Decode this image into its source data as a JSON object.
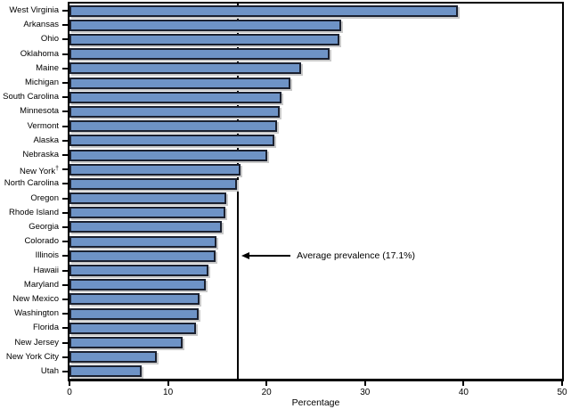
{
  "chart_data": {
    "type": "bar",
    "orientation": "horizontal",
    "title": "",
    "xlabel": "Percentage",
    "xlim": [
      0,
      50
    ],
    "x_ticks": [
      0,
      10,
      20,
      30,
      40,
      50
    ],
    "grid": false,
    "legend": "none",
    "categories": [
      "West Virginia",
      "Arkansas",
      "Ohio",
      "Oklahoma",
      "Maine",
      "Michigan",
      "South Carolina",
      "Minnesota",
      "Vermont",
      "Alaska",
      "Nebraska",
      "New York†",
      "North Carolina",
      "Oregon",
      "Rhode Island",
      "Georgia",
      "Colorado",
      "Illinois",
      "Hawaii",
      "Maryland",
      "New Mexico",
      "Washington",
      "Florida",
      "New Jersey",
      "New York City",
      "Utah"
    ],
    "values": [
      39.4,
      27.6,
      27.4,
      26.4,
      23.5,
      22.4,
      21.5,
      21.3,
      21.1,
      20.8,
      20.1,
      17.4,
      17.0,
      15.9,
      15.8,
      15.5,
      14.9,
      14.8,
      14.1,
      13.8,
      13.2,
      13.1,
      12.8,
      11.5,
      8.9,
      7.3
    ],
    "reference_line": {
      "value": 17.1,
      "label": "Average prevalence (17.1%)",
      "label_row": "Illinois"
    },
    "colors": {
      "bar_fill": "#6E93C6",
      "bar_border": "#1b2130",
      "axis": "#000000",
      "reference_line": "#000000"
    }
  }
}
